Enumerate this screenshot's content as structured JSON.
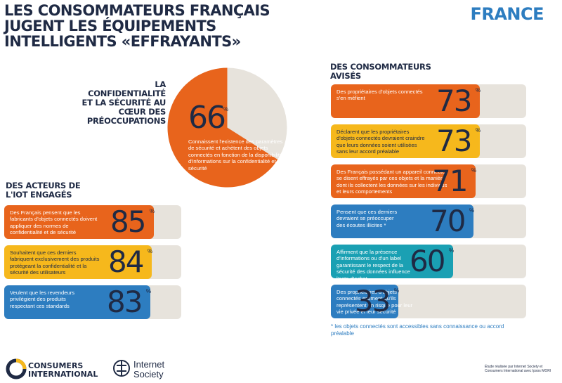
{
  "header": {
    "title": "LES CONSOMMATEURS FRANÇAIS JUGENT LES ÉQUIPEMENTS INTELLIGENTS «EFFRAYANTS»",
    "country": "FRANCE"
  },
  "sections": {
    "center_heading": "LA CONFIDENTIALITÉ ET LA SÉCURITÉ AU CŒUR DES PRÉOCCUPATIONS",
    "left_heading": "DES ACTEURS DE L'IOT ENGAGÉS",
    "right_heading": "DES CONSOMMATEURS AVISÉS"
  },
  "pie": {
    "value_label": "66",
    "pct_symbol": "%",
    "description": "Connaissent l'existence des paramètres de sécurité et achètent des objets connectés en fonction de la disponibilité d'informations sur la confidentialité et la sécurité"
  },
  "left_bars": [
    {
      "text": "Des Français pensent que les fabricants d'objets connectés doivent appliquer des normes de confidentialité et de sécurité",
      "value_label": "85",
      "pct_symbol": "%"
    },
    {
      "text": "Souhaitent que ces derniers fabriquent exclusivement des produits protégeant la confidentialité et la sécurité des utilisateurs",
      "value_label": "84",
      "pct_symbol": "%"
    },
    {
      "text": "Veulent que les revendeurs privilégient des produits respectant ces standards",
      "value_label": "83",
      "pct_symbol": "%"
    }
  ],
  "right_bars": [
    {
      "text": "Des propriétaires d'objets connectés s'en méfient",
      "value_label": "73",
      "pct_symbol": "%"
    },
    {
      "text": "Déclarent que les propriétaires d'objets connectés devraient craindre que leurs données soient utilisées sans leur accord préalable",
      "value_label": "73",
      "pct_symbol": "%"
    },
    {
      "text": "Des Français possédant un appareil connecté se disent effrayés par ces objets et la manière dont ils collectent les données sur les individus et leurs comportements",
      "value_label": "71",
      "pct_symbol": "%"
    },
    {
      "text": "Pensent que ces derniers devraient se préoccuper des écoutes illicites *",
      "value_label": "70",
      "pct_symbol": "%"
    },
    {
      "text": "Affirment que la présence d'informations ou d'un label garantissant le respect de la sécurité des données influence l'acte d'achat",
      "value_label": "60",
      "pct_symbol": "%"
    },
    {
      "text": "Des propriétaires d'objets connectés estiment qu'ils représentent un risque pour leur vie privée et leur sécurité",
      "value_label": "33",
      "pct_symbol": "%"
    }
  ],
  "footnote": "* les objets connectés sont accessibles sans connaissance ou accord préalable",
  "footer": {
    "logo_ci_line1": "CONSUMERS",
    "logo_ci_line2": "INTERNATIONAL",
    "logo_is_line1": "Internet",
    "logo_is_line2": "Society",
    "credit": "Étude réalisée par Internet Society et Consumers International avec Ipsos MORI"
  },
  "colors": {
    "orange": "#e8641c",
    "yellow": "#f6b81c",
    "blue": "#2d7dc0",
    "teal": "#1aa0b3",
    "track": "#e7e3dc",
    "navy": "#1f2a44"
  },
  "chart_data": [
    {
      "type": "pie",
      "categories": [
        "66",
        ""
      ],
      "values": [
        66,
        34
      ]
    },
    {
      "type": "bar",
      "categories": [
        "85",
        "84",
        "83"
      ],
      "values": [
        85,
        84,
        83
      ]
    },
    {
      "type": "bar",
      "categories": [
        "73",
        "73",
        "71",
        "70",
        "60",
        "33"
      ],
      "values": [
        73,
        73,
        71,
        70,
        60,
        33
      ]
    }
  ]
}
